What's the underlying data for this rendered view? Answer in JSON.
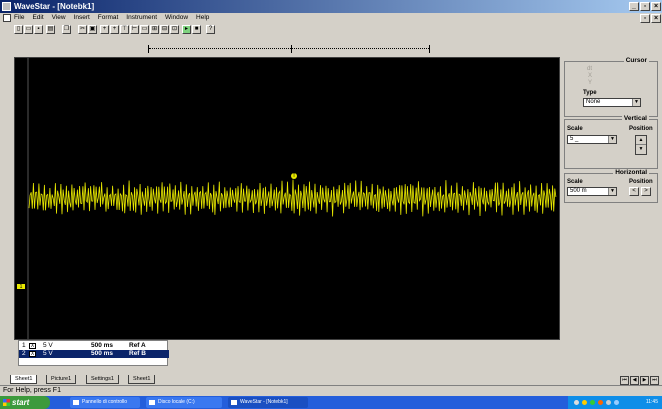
{
  "window": {
    "title": "WaveStar - [Notebk1]"
  },
  "menu": [
    "File",
    "Edit",
    "View",
    "Insert",
    "Format",
    "Instrument",
    "Window",
    "Help"
  ],
  "cursor_panel": {
    "title": "Cursor",
    "items": [
      "dt",
      "X",
      "Y"
    ],
    "type_label": "Type",
    "type_value": "None"
  },
  "vertical_panel": {
    "title": "Vertical",
    "scale_label": "Scale",
    "scale_value": "5 _",
    "position_label": "Position"
  },
  "horizontal_panel": {
    "title": "Horizontal",
    "scale_label": "Scale",
    "scale_value": "500 m",
    "position_label": "Position"
  },
  "scope": {
    "background": "#000000",
    "trace_color": "#e8e800",
    "marker_1": "1",
    "marker_t": "T"
  },
  "channels": [
    {
      "index": "1",
      "checked": "X",
      "volts": "5 V",
      "time": "500 ms",
      "ref": "Ref A"
    },
    {
      "index": "2",
      "checked": "X",
      "volts": "5 V",
      "time": "500 ms",
      "ref": "Ref B"
    }
  ],
  "sheet_tabs": [
    "Sheet1",
    "Picture1",
    "Settings1",
    "Sheet1"
  ],
  "status": {
    "text": "For Help, press F1"
  },
  "taskbar": {
    "start_label": "start",
    "tasks": [
      "Pannello di controllo",
      "Disco locale (C:)",
      "WaveStar - [Notebk1]"
    ],
    "clock": "11:45"
  }
}
